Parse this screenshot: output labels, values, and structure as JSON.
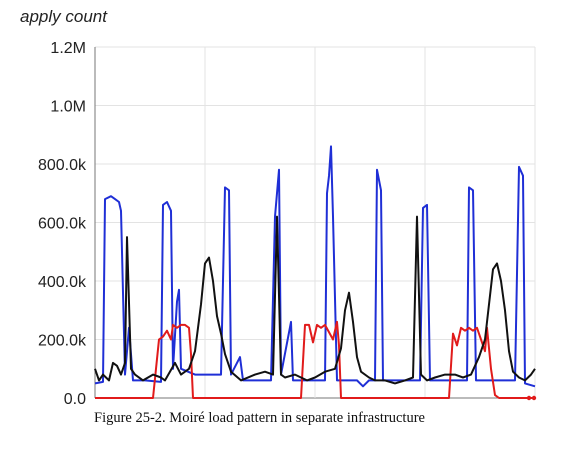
{
  "chart_data": {
    "type": "line",
    "ylabel": "apply count",
    "ylim": [
      0,
      1200000
    ],
    "yticks": [
      {
        "value": 0,
        "label": "0.0"
      },
      {
        "value": 200000,
        "label": "200.0k"
      },
      {
        "value": 400000,
        "label": "400.0k"
      },
      {
        "value": 600000,
        "label": "600.0k"
      },
      {
        "value": 800000,
        "label": "800.0k"
      },
      {
        "value": 1000000,
        "label": "1.0M"
      },
      {
        "value": 1200000,
        "label": "1.2M"
      }
    ],
    "grid": true,
    "xlim": [
      0,
      440
    ],
    "series": [
      {
        "color": "#1f2fd6",
        "points": [
          [
            0,
            50000
          ],
          [
            8,
            55000
          ],
          [
            10,
            680000
          ],
          [
            16,
            690000
          ],
          [
            20,
            680000
          ],
          [
            24,
            670000
          ],
          [
            26,
            640000
          ],
          [
            30,
            80000
          ],
          [
            34,
            240000
          ],
          [
            38,
            60000
          ],
          [
            50,
            60000
          ],
          [
            66,
            55000
          ],
          [
            68,
            660000
          ],
          [
            72,
            670000
          ],
          [
            76,
            640000
          ],
          [
            78,
            100000
          ],
          [
            82,
            330000
          ],
          [
            84,
            370000
          ],
          [
            86,
            100000
          ],
          [
            100,
            80000
          ],
          [
            112,
            80000
          ],
          [
            126,
            80000
          ],
          [
            130,
            720000
          ],
          [
            134,
            710000
          ],
          [
            136,
            80000
          ],
          [
            145,
            140000
          ],
          [
            148,
            60000
          ],
          [
            160,
            60000
          ],
          [
            176,
            60000
          ],
          [
            180,
            620000
          ],
          [
            184,
            780000
          ],
          [
            186,
            80000
          ],
          [
            196,
            260000
          ],
          [
            198,
            60000
          ],
          [
            230,
            60000
          ],
          [
            232,
            700000
          ],
          [
            234,
            760000
          ],
          [
            236,
            860000
          ],
          [
            238,
            620000
          ],
          [
            242,
            60000
          ],
          [
            252,
            60000
          ],
          [
            262,
            60000
          ],
          [
            268,
            40000
          ],
          [
            274,
            60000
          ],
          [
            280,
            60000
          ],
          [
            282,
            780000
          ],
          [
            286,
            710000
          ],
          [
            288,
            60000
          ],
          [
            298,
            60000
          ],
          [
            310,
            60000
          ],
          [
            325,
            60000
          ],
          [
            328,
            650000
          ],
          [
            332,
            660000
          ],
          [
            335,
            60000
          ],
          [
            350,
            60000
          ],
          [
            360,
            60000
          ],
          [
            372,
            60000
          ],
          [
            374,
            720000
          ],
          [
            378,
            710000
          ],
          [
            381,
            60000
          ],
          [
            392,
            60000
          ],
          [
            402,
            60000
          ],
          [
            412,
            60000
          ],
          [
            420,
            60000
          ],
          [
            424,
            790000
          ],
          [
            428,
            760000
          ],
          [
            430,
            50000
          ],
          [
            440,
            40000
          ]
        ]
      },
      {
        "color": "#e11b1b",
        "points": [
          [
            0,
            0
          ],
          [
            40,
            0
          ],
          [
            50,
            0
          ],
          [
            58,
            0
          ],
          [
            64,
            200000
          ],
          [
            68,
            210000
          ],
          [
            72,
            230000
          ],
          [
            76,
            200000
          ],
          [
            78,
            250000
          ],
          [
            82,
            240000
          ],
          [
            86,
            250000
          ],
          [
            90,
            250000
          ],
          [
            94,
            240000
          ],
          [
            96,
            150000
          ],
          [
            98,
            0
          ],
          [
            200,
            0
          ],
          [
            206,
            0
          ],
          [
            210,
            250000
          ],
          [
            214,
            250000
          ],
          [
            218,
            190000
          ],
          [
            222,
            250000
          ],
          [
            226,
            240000
          ],
          [
            230,
            250000
          ],
          [
            238,
            200000
          ],
          [
            242,
            260000
          ],
          [
            244,
            180000
          ],
          [
            246,
            0
          ],
          [
            350,
            0
          ],
          [
            354,
            0
          ],
          [
            358,
            220000
          ],
          [
            362,
            180000
          ],
          [
            366,
            240000
          ],
          [
            370,
            230000
          ],
          [
            374,
            240000
          ],
          [
            378,
            230000
          ],
          [
            382,
            240000
          ],
          [
            386,
            200000
          ],
          [
            390,
            160000
          ],
          [
            392,
            240000
          ],
          [
            396,
            100000
          ],
          [
            400,
            10000
          ],
          [
            404,
            0
          ],
          [
            440,
            0
          ]
        ]
      },
      {
        "color": "#111111",
        "points": [
          [
            0,
            100000
          ],
          [
            4,
            60000
          ],
          [
            8,
            80000
          ],
          [
            14,
            60000
          ],
          [
            18,
            120000
          ],
          [
            22,
            110000
          ],
          [
            26,
            80000
          ],
          [
            30,
            120000
          ],
          [
            32,
            550000
          ],
          [
            36,
            100000
          ],
          [
            40,
            80000
          ],
          [
            48,
            60000
          ],
          [
            58,
            80000
          ],
          [
            66,
            70000
          ],
          [
            70,
            60000
          ],
          [
            80,
            120000
          ],
          [
            86,
            80000
          ],
          [
            94,
            100000
          ],
          [
            100,
            160000
          ],
          [
            106,
            320000
          ],
          [
            110,
            460000
          ],
          [
            114,
            480000
          ],
          [
            118,
            400000
          ],
          [
            122,
            280000
          ],
          [
            126,
            220000
          ],
          [
            130,
            150000
          ],
          [
            136,
            90000
          ],
          [
            146,
            60000
          ],
          [
            160,
            80000
          ],
          [
            170,
            90000
          ],
          [
            178,
            80000
          ],
          [
            182,
            620000
          ],
          [
            186,
            80000
          ],
          [
            190,
            70000
          ],
          [
            200,
            80000
          ],
          [
            212,
            60000
          ],
          [
            220,
            70000
          ],
          [
            230,
            90000
          ],
          [
            240,
            100000
          ],
          [
            246,
            170000
          ],
          [
            250,
            300000
          ],
          [
            254,
            360000
          ],
          [
            258,
            260000
          ],
          [
            262,
            140000
          ],
          [
            266,
            90000
          ],
          [
            274,
            70000
          ],
          [
            280,
            60000
          ],
          [
            290,
            60000
          ],
          [
            300,
            50000
          ],
          [
            310,
            60000
          ],
          [
            318,
            70000
          ],
          [
            322,
            620000
          ],
          [
            326,
            80000
          ],
          [
            332,
            60000
          ],
          [
            340,
            70000
          ],
          [
            350,
            80000
          ],
          [
            360,
            80000
          ],
          [
            368,
            70000
          ],
          [
            376,
            80000
          ],
          [
            384,
            140000
          ],
          [
            390,
            200000
          ],
          [
            394,
            320000
          ],
          [
            398,
            440000
          ],
          [
            402,
            460000
          ],
          [
            406,
            400000
          ],
          [
            410,
            300000
          ],
          [
            414,
            160000
          ],
          [
            418,
            90000
          ],
          [
            424,
            70000
          ],
          [
            430,
            60000
          ],
          [
            436,
            80000
          ],
          [
            440,
            100000
          ]
        ]
      }
    ]
  },
  "caption": "Figure 25-2. Moiré load pattern in separate infrastructure"
}
